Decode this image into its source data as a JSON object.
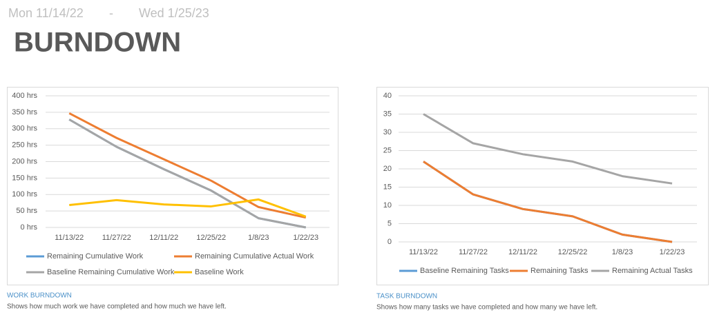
{
  "header": {
    "start": "Mon 11/14/22",
    "separator": "-",
    "end": "Wed 1/25/23",
    "title": "BURNDOWN"
  },
  "chart_data": [
    {
      "type": "line",
      "title": "WORK BURNDOWN",
      "subtitle": "Shows how much work we have completed and how much we have left.",
      "categories": [
        "11/13/22",
        "11/27/22",
        "12/11/22",
        "12/25/22",
        "1/8/23",
        "1/22/23"
      ],
      "ylim": [
        0,
        400
      ],
      "yticks": [
        {
          "value": 0,
          "label": "0 hrs"
        },
        {
          "value": 50,
          "label": "50 hrs"
        },
        {
          "value": 100,
          "label": "100 hrs"
        },
        {
          "value": 150,
          "label": "150 hrs"
        },
        {
          "value": 200,
          "label": "200 hrs"
        },
        {
          "value": 250,
          "label": "250 hrs"
        },
        {
          "value": 300,
          "label": "300 hrs"
        },
        {
          "value": 350,
          "label": "350 hrs"
        },
        {
          "value": 400,
          "label": "400 hrs"
        }
      ],
      "grid": true,
      "legend": "bottom",
      "series": [
        {
          "name": "Remaining Cumulative Work",
          "color": "#5b9bd5",
          "values": [
            328,
            245,
            177,
            112,
            28,
            0
          ]
        },
        {
          "name": "Remaining Cumulative Actual Work",
          "color": "#ed7d31",
          "values": [
            347,
            272,
            207,
            142,
            62,
            30
          ]
        },
        {
          "name": "Baseline Remaining Cumulative Work",
          "color": "#a5a5a5",
          "values": [
            328,
            245,
            177,
            112,
            28,
            0
          ]
        },
        {
          "name": "Baseline Work",
          "color": "#ffc000",
          "values": [
            68,
            83,
            70,
            64,
            85,
            33
          ]
        }
      ]
    },
    {
      "type": "line",
      "title": "TASK BURNDOWN",
      "subtitle": "Shows how many tasks we have completed and how many we have left.",
      "categories": [
        "11/13/22",
        "11/27/22",
        "12/11/22",
        "12/25/22",
        "1/8/23",
        "1/22/23"
      ],
      "ylim": [
        0,
        40
      ],
      "yticks": [
        0,
        5,
        10,
        15,
        20,
        25,
        30,
        35,
        40
      ],
      "grid": true,
      "legend": "bottom",
      "series": [
        {
          "name": "Baseline Remaining Tasks",
          "color": "#5b9bd5",
          "values": [
            22,
            13,
            9,
            7,
            2,
            0
          ]
        },
        {
          "name": "Remaining Tasks",
          "color": "#ed7d31",
          "values": [
            22,
            13,
            9,
            7,
            2,
            0
          ]
        },
        {
          "name": "Remaining Actual Tasks",
          "color": "#a5a5a5",
          "values": [
            35,
            27,
            24,
            22,
            18,
            16
          ]
        }
      ]
    }
  ]
}
